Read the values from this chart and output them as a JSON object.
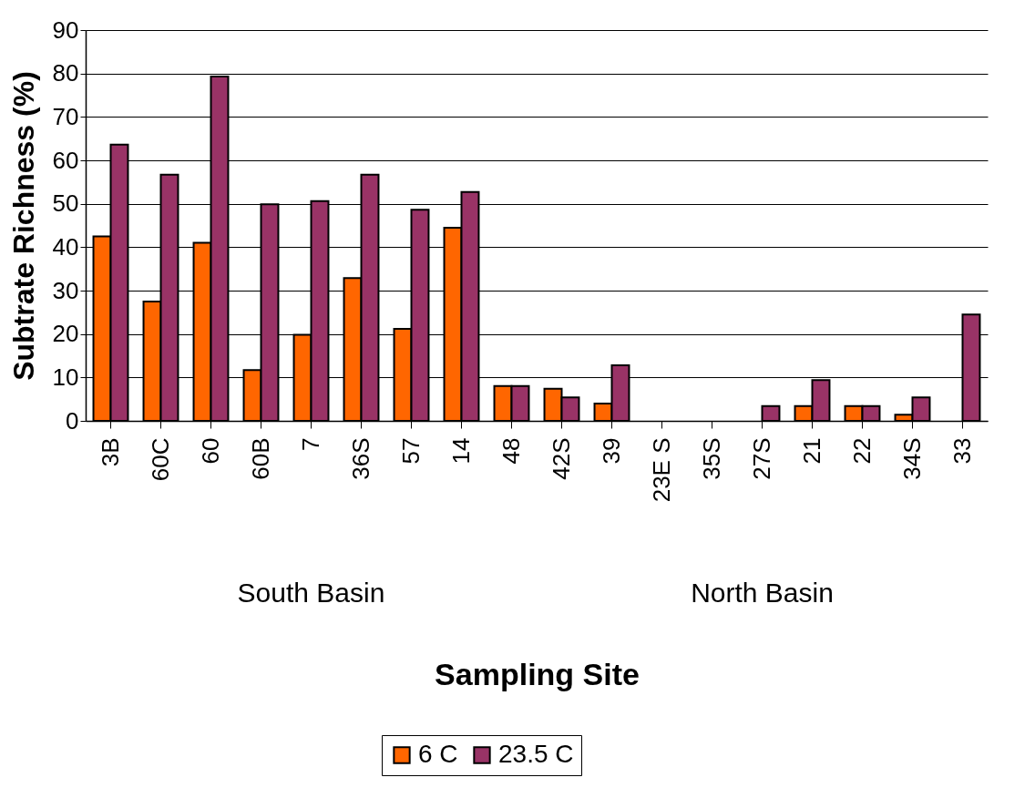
{
  "chart_data": {
    "type": "bar",
    "ylabel": "Subtrate Richness (%)",
    "xlabel": "Sampling Site",
    "categories": [
      "3B",
      "60C",
      "60",
      "60B",
      "7",
      "36S",
      "57",
      "14",
      "48",
      "42S",
      "39",
      "23E S",
      "35S",
      "27S",
      "21",
      "22",
      "34S",
      "33"
    ],
    "series": [
      {
        "name": "6 C",
        "color": "#ff6600",
        "values": [
          42.5,
          27.5,
          41,
          11.7,
          19.8,
          32.9,
          21.2,
          44.5,
          8,
          7.4,
          4,
          null,
          null,
          null,
          3.4,
          3.4,
          1.4,
          null
        ]
      },
      {
        "name": "23.5 C",
        "color": "#993366",
        "values": [
          63.6,
          56.7,
          79.3,
          49.9,
          50.6,
          56.7,
          48.6,
          52.7,
          8,
          5.4,
          12.8,
          null,
          null,
          3.4,
          9.4,
          3.4,
          5.4,
          24.5
        ]
      }
    ],
    "annotations": [
      "South Basin",
      "North Basin"
    ],
    "ylim": [
      0,
      90
    ],
    "yticks": [
      0,
      10,
      20,
      30,
      40,
      50,
      60,
      70,
      80,
      90
    ],
    "grid": "y",
    "legend": "bottom"
  }
}
